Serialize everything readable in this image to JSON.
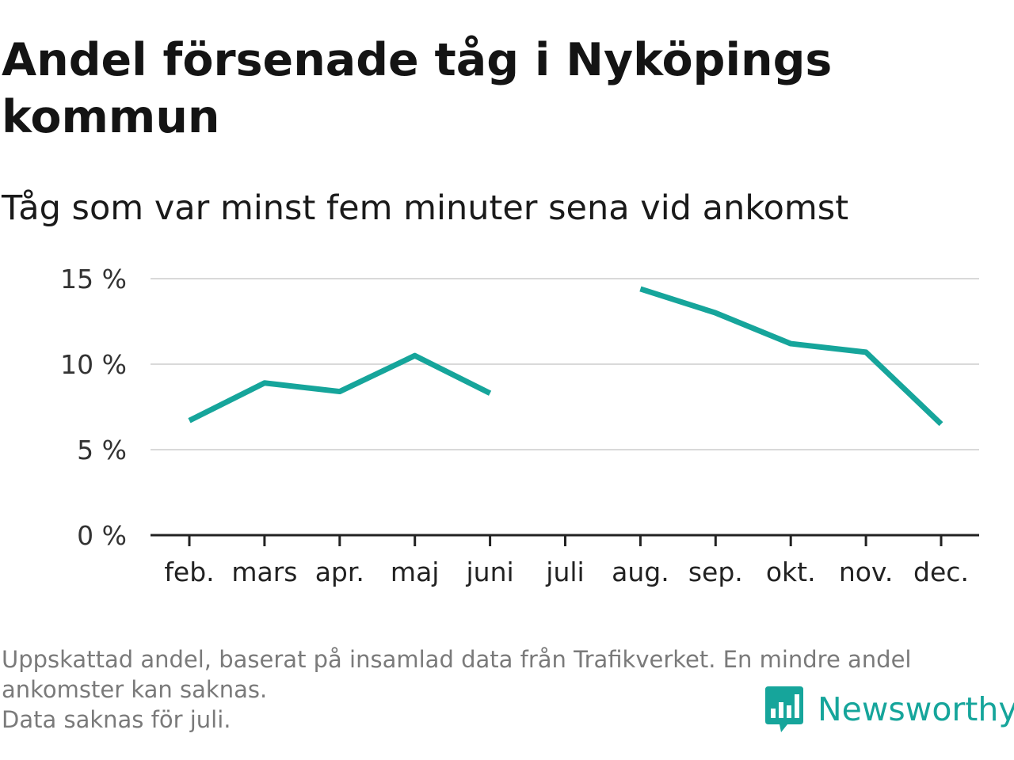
{
  "header": {
    "title": "Andel försenade tåg i Nyköpings kommun",
    "subtitle": "Tåg som var minst fem minuter sena vid ankomst"
  },
  "chart_data": {
    "type": "line",
    "title": "Andel försenade tåg i Nyköpings kommun",
    "subtitle": "Tåg som var minst fem minuter sena vid ankomst",
    "xlabel": "",
    "ylabel": "",
    "categories": [
      "feb.",
      "mars",
      "apr.",
      "maj",
      "juni",
      "juli",
      "aug.",
      "sep.",
      "okt.",
      "nov.",
      "dec."
    ],
    "series": [
      {
        "values": [
          6.7,
          8.9,
          8.4,
          10.5,
          8.3,
          null,
          14.4,
          13.0,
          11.2,
          10.7,
          6.5
        ]
      }
    ],
    "y_ticks": [
      0,
      5,
      10,
      15
    ],
    "y_tick_labels": [
      "0 %",
      "5 %",
      "10 %",
      "15 %"
    ],
    "ylim": [
      0,
      15
    ],
    "grid": "horizontal",
    "legend": "none",
    "line_color": "#16a59b",
    "grid_color": "#d9d9d9",
    "axis_color": "#222222"
  },
  "footer": {
    "note_line1": "Uppskattad andel, baserat på insamlad data från Trafikverket. En mindre andel",
    "note_line2": "ankomster kan saknas.",
    "note_line3": "Data saknas för juli."
  },
  "brand": {
    "name": "Newsworthy",
    "icon": "newsworthy-logo-icon",
    "color": "#16a59b"
  }
}
